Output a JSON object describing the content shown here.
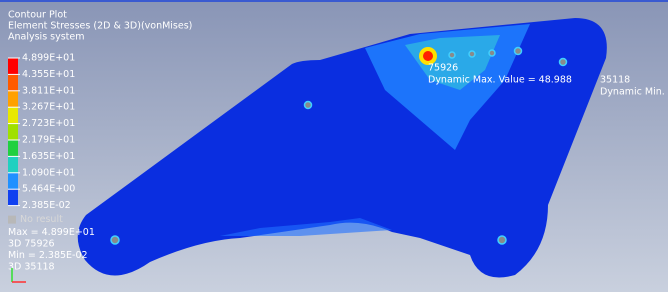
{
  "header": {
    "lines": [
      "Contour Plot",
      "Element Stresses (2D & 3D)(vonMises)",
      "Analysis system"
    ]
  },
  "legend": {
    "labels": [
      "4.899E+01",
      "4.355E+01",
      "3.811E+01",
      "3.267E+01",
      "2.723E+01",
      "2.179E+01",
      "1.635E+01",
      "1.090E+01",
      "5.464E+00",
      "2.385E-02"
    ],
    "colors": [
      "#ff0000",
      "#ff5a00",
      "#ffa000",
      "#e8e800",
      "#a0e000",
      "#20d040",
      "#20d0c0",
      "#2090ff",
      "#1040f0"
    ],
    "no_result": "No result",
    "no_result_color": "#b8b8b8"
  },
  "summary": [
    "Max = 4.899E+01",
    "3D 75926",
    "Min = 2.385E-02",
    "3D 35118"
  ],
  "annotations": {
    "max": {
      "id": "75926",
      "text": "Dynamic Max. Value = 48.988"
    },
    "min": {
      "id": "35118",
      "text": "Dynamic Min. V"
    }
  }
}
